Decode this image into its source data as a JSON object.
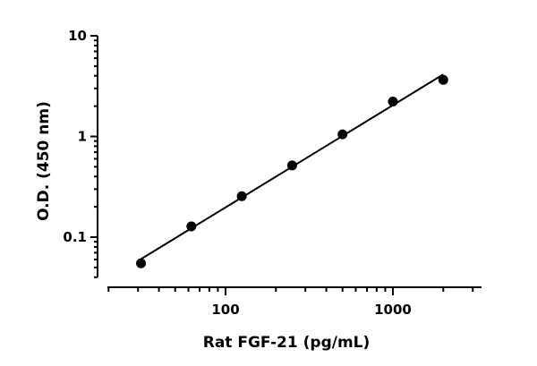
{
  "chart_data": {
    "type": "scatter",
    "xlabel": "Rat FGF-21 (pg/mL)",
    "ylabel": "O.D. (450 nm)",
    "x_scale": "log",
    "y_scale": "log",
    "xlim": [
      18,
      2900
    ],
    "ylim": [
      0.04,
      10
    ],
    "x_ticks": [
      100,
      1000
    ],
    "x_tick_labels": [
      "100",
      "1000"
    ],
    "y_ticks": [
      0.1,
      1,
      10
    ],
    "y_tick_labels": [
      "0.1",
      "1",
      "10"
    ],
    "grid": false,
    "legend": "none",
    "fit_line": true,
    "marker_color": "#000000",
    "series": [
      {
        "x": [
          31.25,
          62.5,
          125,
          250,
          500,
          1000,
          2000
        ],
        "y": [
          0.055,
          0.128,
          0.255,
          0.515,
          1.05,
          2.22,
          3.65
        ]
      }
    ]
  }
}
